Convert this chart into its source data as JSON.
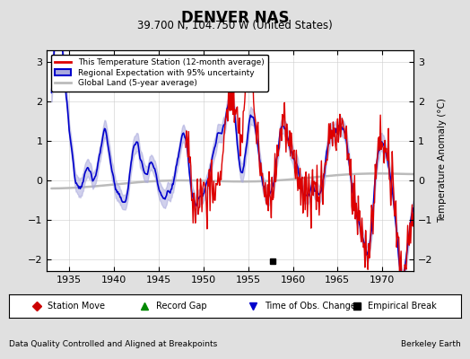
{
  "title": "DENVER NAS",
  "subtitle": "39.700 N, 104.750 W (United States)",
  "footer_left": "Data Quality Controlled and Aligned at Breakpoints",
  "footer_right": "Berkeley Earth",
  "ylabel": "Temperature Anomaly (°C)",
  "xlim": [
    1932.5,
    1973.5
  ],
  "ylim": [
    -2.3,
    3.3
  ],
  "yticks": [
    -2,
    -1,
    0,
    1,
    2,
    3
  ],
  "xticks": [
    1935,
    1940,
    1945,
    1950,
    1955,
    1960,
    1965,
    1970
  ],
  "bg_color": "#e0e0e0",
  "plot_bg_color": "#ffffff",
  "station_line_color": "#dd0000",
  "regional_line_color": "#0000cc",
  "regional_band_color": "#aaaadd",
  "global_line_color": "#bbbbbb",
  "obs_change_year": 1957.7,
  "empirical_break_year": 1957.7,
  "legend_labels": [
    "This Temperature Station (12-month average)",
    "Regional Expectation with 95% uncertainty",
    "Global Land (5-year average)"
  ],
  "bottom_legend": [
    "Station Move",
    "Record Gap",
    "Time of Obs. Change",
    "Empirical Break"
  ],
  "bottom_legend_colors": [
    "#cc0000",
    "#008800",
    "#0000cc",
    "#000000"
  ],
  "bottom_legend_markers": [
    "D",
    "^",
    "v",
    "s"
  ]
}
